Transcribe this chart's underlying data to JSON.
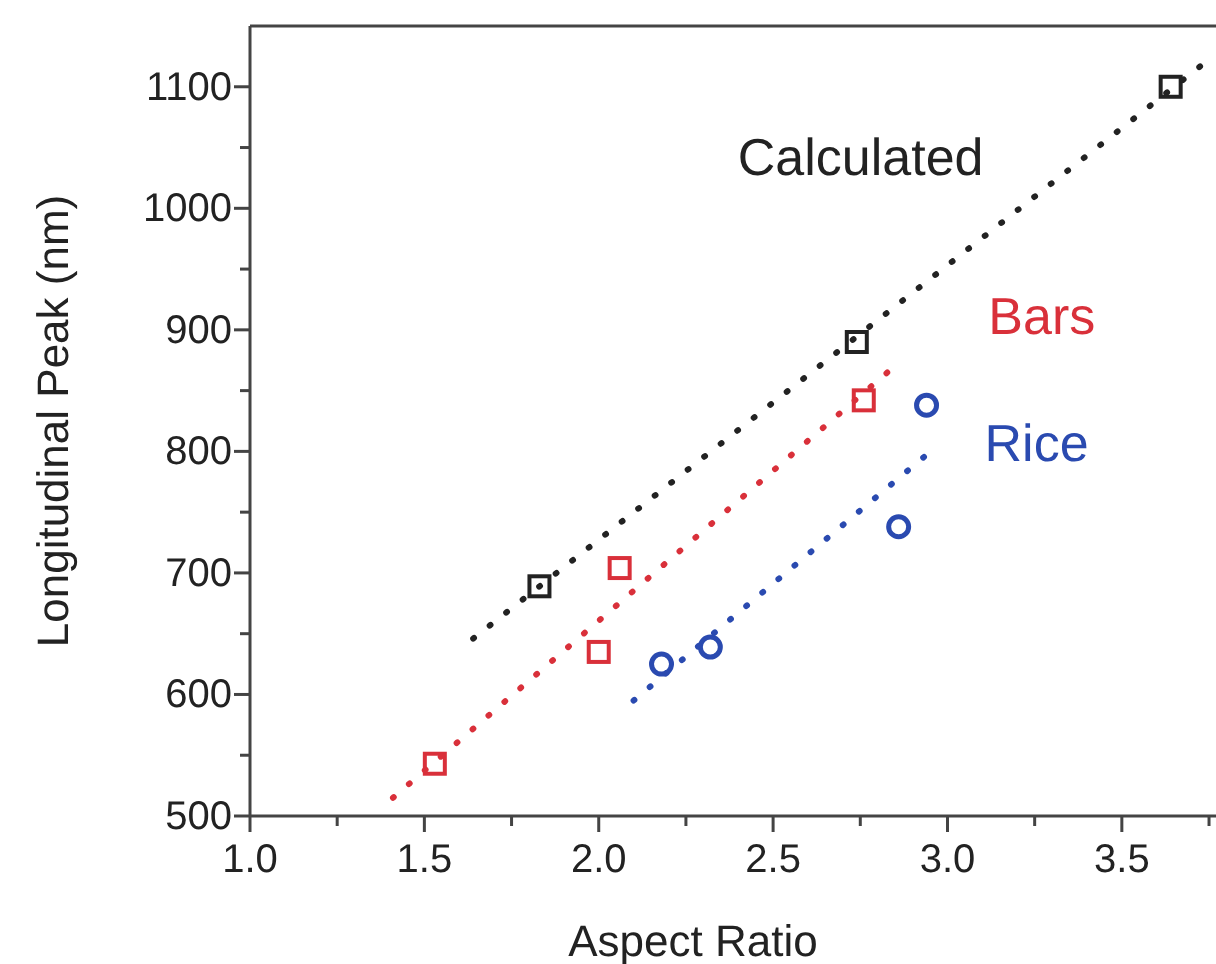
{
  "chart_data": {
    "type": "scatter",
    "xlabel": "Aspect Ratio",
    "ylabel": "Longitudinal Peak (nm)",
    "xlim": [
      1.0,
      3.77
    ],
    "ylim": [
      500,
      1150
    ],
    "xticks": [
      {
        "value": 1.0,
        "label": "1.0"
      },
      {
        "value": 1.25,
        "label": null
      },
      {
        "value": 1.5,
        "label": "1.5"
      },
      {
        "value": 1.75,
        "label": null
      },
      {
        "value": 2.0,
        "label": "2.0"
      },
      {
        "value": 2.25,
        "label": null
      },
      {
        "value": 2.5,
        "label": "2.5"
      },
      {
        "value": 2.75,
        "label": null
      },
      {
        "value": 3.0,
        "label": "3.0"
      },
      {
        "value": 3.25,
        "label": null
      },
      {
        "value": 3.5,
        "label": "3.5"
      },
      {
        "value": 3.75,
        "label": null
      }
    ],
    "yticks": [
      500,
      {
        "value": 550,
        "label": null
      },
      600,
      {
        "value": 650,
        "label": null
      },
      700,
      {
        "value": 750,
        "label": null
      },
      800,
      {
        "value": 850,
        "label": null
      },
      900,
      {
        "value": 950,
        "label": null
      },
      1000,
      {
        "value": 1050,
        "label": null
      },
      1100
    ],
    "grid": false,
    "series": [
      {
        "name": "Calculated",
        "marker": "square",
        "color": "#222222",
        "x": [
          1.83,
          2.74,
          3.64
        ],
        "values": [
          689,
          890,
          1100
        ]
      },
      {
        "name": "Bars",
        "marker": "square",
        "color": "#d9303a",
        "x": [
          1.53,
          2.0,
          2.06,
          2.76
        ],
        "values": [
          543,
          635,
          704,
          842
        ]
      },
      {
        "name": "Rice",
        "marker": "circle",
        "color": "#2a4ab0",
        "x": [
          2.18,
          2.32,
          2.86,
          2.94
        ],
        "values": [
          625,
          639,
          738,
          838
        ]
      },
      {
        "type": "line",
        "line_style": "dotted",
        "color": "#222222",
        "x": [
          1.64,
          3.73
        ],
        "values": [
          646,
          1118
        ]
      },
      {
        "type": "line",
        "line_style": "dotted",
        "color": "#d9303a",
        "x": [
          1.41,
          2.84
        ],
        "values": [
          515,
          868
        ]
      },
      {
        "type": "line",
        "line_style": "dotted",
        "color": "#2a4ab0",
        "x": [
          2.1,
          2.96
        ],
        "values": [
          595,
          802
        ]
      }
    ]
  }
}
